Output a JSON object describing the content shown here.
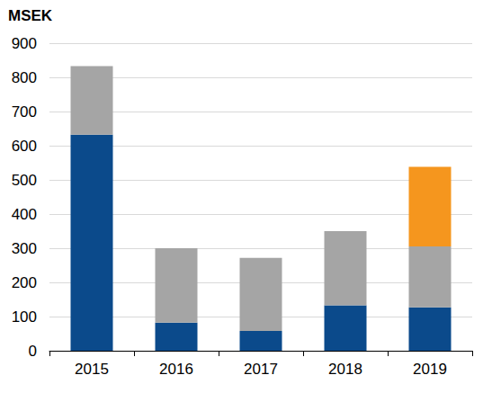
{
  "chart_data": {
    "type": "bar",
    "y_label": "MSEK",
    "categories": [
      "2015",
      "2016",
      "2017",
      "2018",
      "2019"
    ],
    "series": [
      {
        "color": "#0b4a8b",
        "values": [
          632,
          82,
          58,
          133,
          127
        ]
      },
      {
        "color": "#a5a5a5",
        "values": [
          201,
          218,
          214,
          217,
          178
        ]
      },
      {
        "color": "#f5961e",
        "values": [
          null,
          null,
          null,
          null,
          233
        ]
      }
    ],
    "stacked": true,
    "ylim": [
      0,
      900
    ],
    "yticks": [
      0,
      100,
      200,
      300,
      400,
      500,
      600,
      700,
      800,
      900
    ],
    "grid": true
  }
}
